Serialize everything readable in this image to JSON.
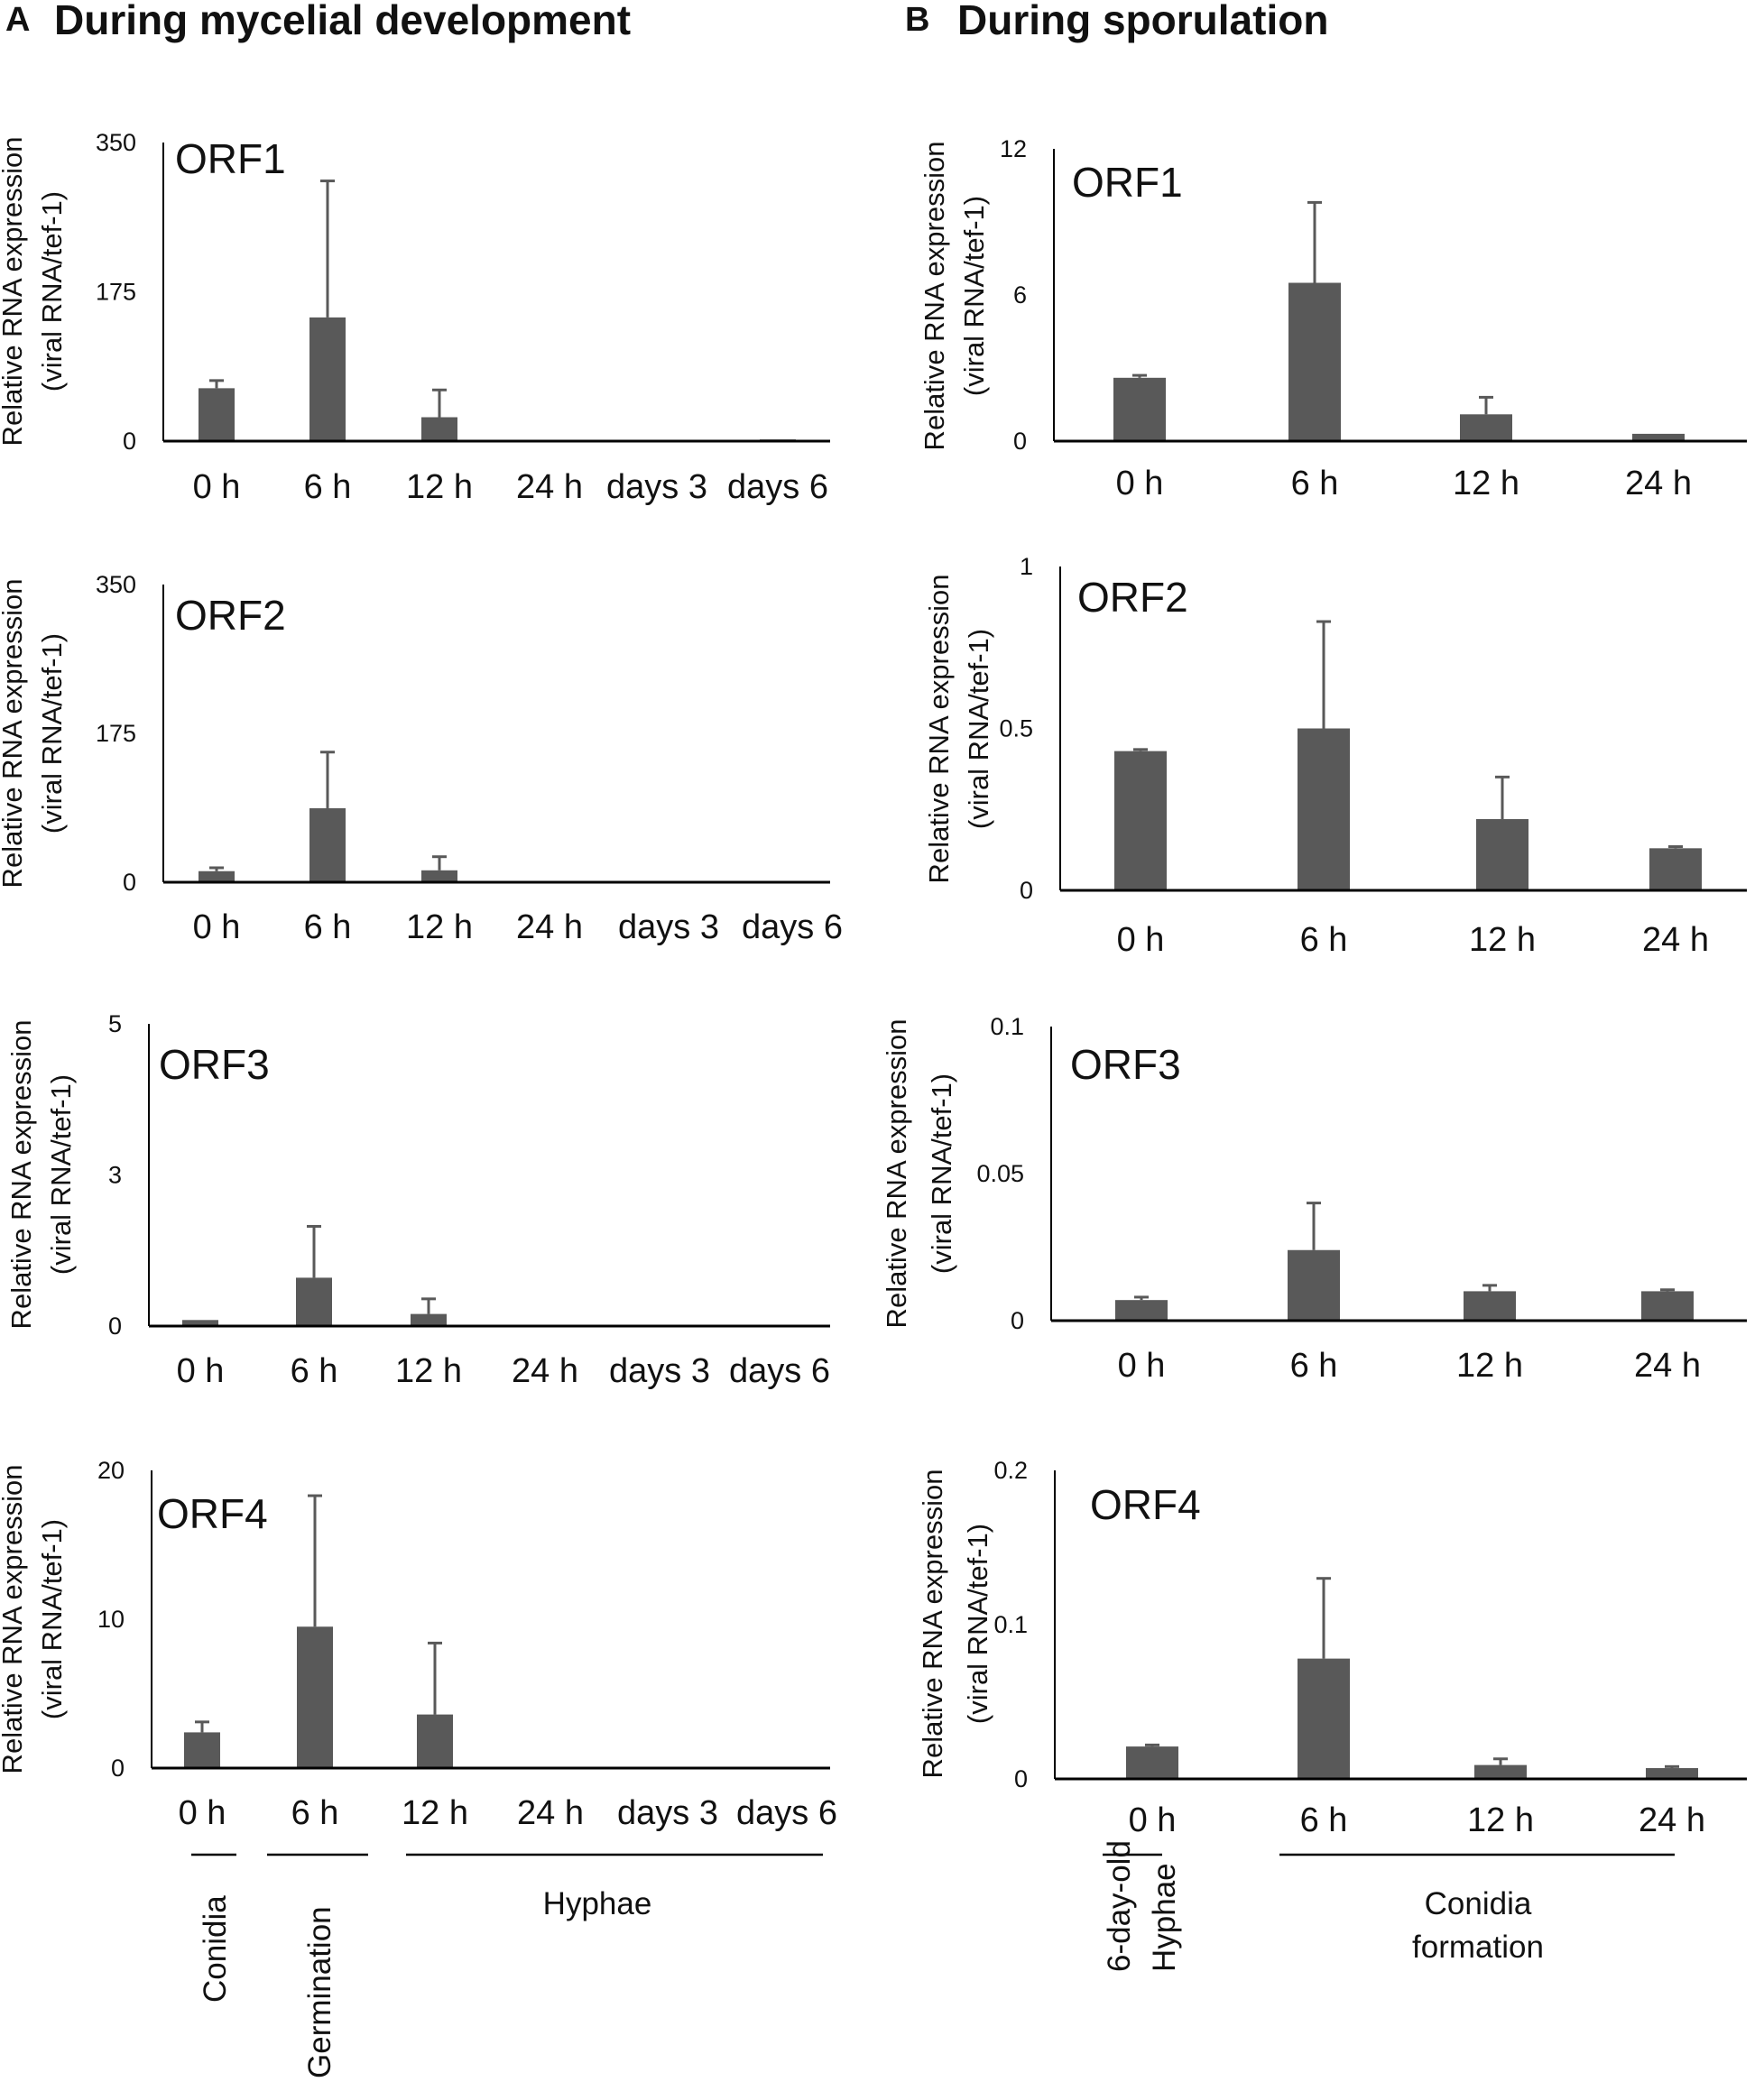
{
  "panels": [
    {
      "letter": "A",
      "title": "During mycelial development"
    },
    {
      "letter": "B",
      "title": "During sporulation"
    }
  ],
  "y_label_line1": "Relative RNA expression",
  "y_label_line2": "(viral RNA/tef-1)",
  "colors": {
    "bar": "#595959",
    "axis": "#000000",
    "text": "#111111"
  },
  "chart_data": [
    {
      "id": "A-ORF1",
      "type": "bar",
      "title": "ORF1",
      "categories": [
        "0 h",
        "6 h",
        "12 h",
        "24 h",
        "days 3",
        "days 6"
      ],
      "values": [
        62,
        145,
        28,
        0.5,
        0.3,
        2
      ],
      "errors": [
        9,
        160,
        32,
        0,
        0,
        0
      ],
      "ylim": [
        0,
        350
      ],
      "yticks": [
        "0",
        "175",
        "350"
      ],
      "ylabel": "Relative RNA expression (viral RNA/tef-1)"
    },
    {
      "id": "A-ORF2",
      "type": "bar",
      "title": "ORF2",
      "categories": [
        "0 h",
        "6 h",
        "12 h",
        "24 h",
        "days 3",
        "days 6"
      ],
      "values": [
        13,
        87,
        14,
        0,
        0,
        0
      ],
      "errors": [
        4,
        66,
        16,
        0,
        0,
        0
      ],
      "ylim": [
        0,
        350
      ],
      "yticks": [
        "0",
        "175",
        "350"
      ],
      "ylabel": "Relative RNA expression (viral RNA/tef-1)"
    },
    {
      "id": "A-ORF3",
      "type": "bar",
      "title": "ORF3",
      "categories": [
        "0 h",
        "6 h",
        "12 h",
        "24 h",
        "days 3",
        "days 6"
      ],
      "values": [
        0.1,
        0.8,
        0.2,
        0,
        0.01,
        0
      ],
      "errors": [
        0,
        0.85,
        0.25,
        0,
        0,
        0
      ],
      "ylim": [
        0,
        5
      ],
      "yticks": [
        "0",
        "3",
        "5"
      ],
      "ylabel": "Relative RNA expression (viral RNA/tef-1)"
    },
    {
      "id": "A-ORF4",
      "type": "bar",
      "title": "ORF4",
      "categories": [
        "0 h",
        "6 h",
        "12 h",
        "24 h",
        "days 3",
        "days 6"
      ],
      "values": [
        2.4,
        9.5,
        3.6,
        0,
        0,
        0
      ],
      "errors": [
        0.7,
        8.8,
        4.8,
        0,
        0,
        0
      ],
      "ylim": [
        0,
        20
      ],
      "yticks": [
        "0",
        "10",
        "20"
      ],
      "ylabel": "Relative RNA expression (viral RNA/tef-1)"
    },
    {
      "id": "B-ORF1",
      "type": "bar",
      "title": "ORF1",
      "categories": [
        "0 h",
        "6 h",
        "12 h",
        "24 h"
      ],
      "values": [
        2.6,
        6.5,
        1.1,
        0.3
      ],
      "errors": [
        0.1,
        3.3,
        0.7,
        0
      ],
      "ylim": [
        0,
        12
      ],
      "yticks": [
        "0",
        "6",
        "12"
      ],
      "ylabel": "Relative RNA expression (viral RNA/tef-1)"
    },
    {
      "id": "B-ORF2",
      "type": "bar",
      "title": "ORF2",
      "categories": [
        "0 h",
        "6 h",
        "12 h",
        "24 h"
      ],
      "values": [
        0.43,
        0.5,
        0.22,
        0.13
      ],
      "errors": [
        0.005,
        0.33,
        0.13,
        0.005
      ],
      "ylim": [
        0,
        1
      ],
      "yticks": [
        "0",
        "0.5",
        "1"
      ],
      "ylabel": "Relative RNA expression (viral RNA/tef-1)"
    },
    {
      "id": "B-ORF3",
      "type": "bar",
      "title": "ORF3",
      "categories": [
        "0 h",
        "6 h",
        "12 h",
        "24 h"
      ],
      "values": [
        0.007,
        0.024,
        0.01,
        0.01
      ],
      "errors": [
        0.001,
        0.016,
        0.002,
        0.0005
      ],
      "ylim": [
        0,
        0.1
      ],
      "yticks": [
        "0",
        "0.05",
        "0.1"
      ],
      "ylabel": "Relative RNA expression (viral RNA/tef-1)"
    },
    {
      "id": "B-ORF4",
      "type": "bar",
      "title": "ORF4",
      "categories": [
        "0 h",
        "6 h",
        "12 h",
        "24 h"
      ],
      "values": [
        0.021,
        0.078,
        0.009,
        0.007
      ],
      "errors": [
        0.001,
        0.052,
        0.004,
        0.001
      ],
      "ylim": [
        0,
        0.2
      ],
      "yticks": [
        "0",
        "0.1",
        "0.2"
      ],
      "ylabel": "Relative RNA expression (viral RNA/tef-1)"
    }
  ],
  "stages_A": [
    "Conidia",
    "Germination",
    "Hyphae"
  ],
  "stages_B": {
    "hyphae_line1": "6-day-old",
    "hyphae_line2": "Hyphae",
    "conidia_line1": "Conidia",
    "conidia_line2": "formation"
  }
}
